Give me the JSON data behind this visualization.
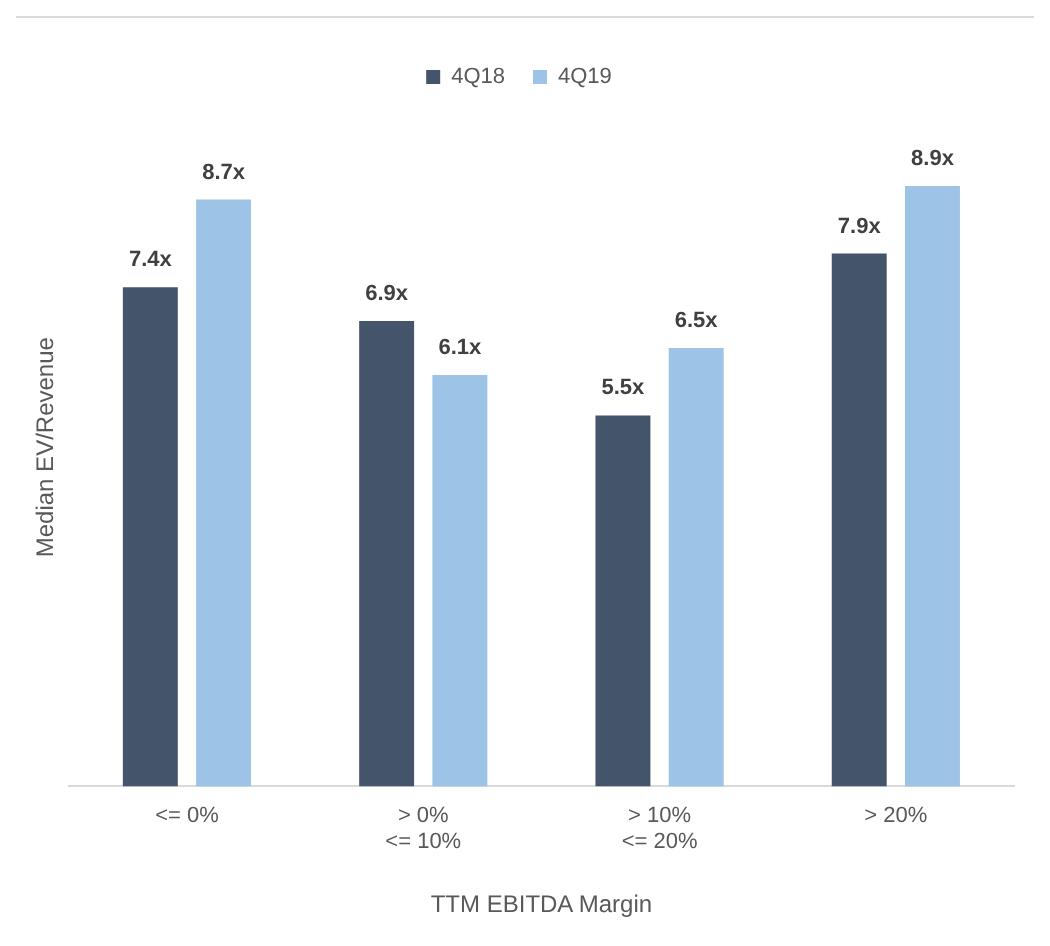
{
  "chart_data": {
    "type": "bar",
    "xlabel": "TTM EBITDA Margin",
    "ylabel": "Median EV/Revenue",
    "categories": [
      "<= 0%",
      "> 0%\n<= 10%",
      "> 10%\n<= 20%",
      "> 20%"
    ],
    "series": [
      {
        "name": "4Q18",
        "color": "#44546a",
        "values": [
          7.4,
          6.9,
          5.5,
          7.9
        ],
        "value_labels": [
          "7.4x",
          "6.9x",
          "5.5x",
          "7.9x"
        ]
      },
      {
        "name": "4Q19",
        "color": "#9dc3e6",
        "values": [
          8.7,
          6.1,
          6.5,
          8.9
        ],
        "value_labels": [
          "8.7x",
          "6.1x",
          "6.5x",
          "8.9x"
        ]
      }
    ],
    "legend": "top",
    "grid": false
  }
}
